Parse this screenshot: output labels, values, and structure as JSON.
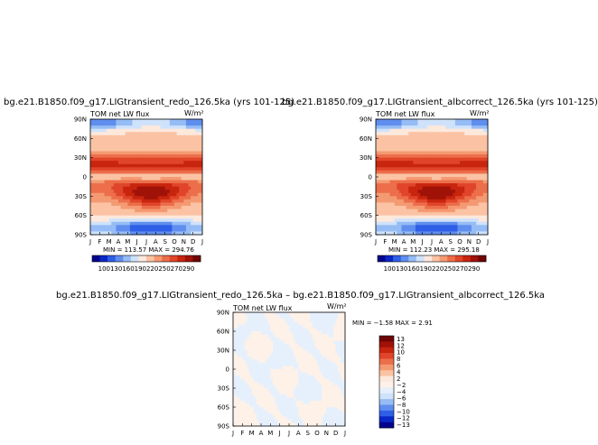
{
  "chart_data": [
    {
      "type": "heatmap",
      "title": "bg.e21.B1850.f09_g17.LIGtransient_redo_126.5ka (yrs 101-125)",
      "left_label": "TOM net LW flux",
      "units": "W/m²",
      "xlabels": [
        "J",
        "F",
        "M",
        "A",
        "M",
        "J",
        "J",
        "A",
        "S",
        "O",
        "N",
        "D",
        "J"
      ],
      "ylabels": [
        "90N",
        "60N",
        "30N",
        "0",
        "30S",
        "60S",
        "90S"
      ],
      "stats": "MIN = 113.57   MAX = 294.76",
      "colorbar_labels": [
        "100",
        "130",
        "160",
        "190",
        "220",
        "250",
        "270",
        "290"
      ]
    },
    {
      "type": "heatmap",
      "title": "bg.e21.B1850.f09_g17.LIGtransient_albcorrect_126.5ka (yrs 101-125)",
      "left_label": "TOM net LW flux",
      "units": "W/m²",
      "xlabels": [
        "J",
        "F",
        "M",
        "A",
        "M",
        "J",
        "J",
        "A",
        "S",
        "O",
        "N",
        "D",
        "J"
      ],
      "ylabels": [
        "90N",
        "60N",
        "30N",
        "0",
        "30S",
        "60S",
        "90S"
      ],
      "stats": "MIN = 112.23   MAX = 295.18",
      "colorbar_labels": [
        "100",
        "130",
        "160",
        "190",
        "220",
        "250",
        "270",
        "290"
      ]
    },
    {
      "type": "heatmap",
      "title": "bg.e21.B1850.f09_g17.LIGtransient_redo_126.5ka – bg.e21.B1850.f09_g17.LIGtransient_albcorrect_126.5ka",
      "left_label": "TOM net LW flux",
      "units": "W/m²",
      "xlabels": [
        "J",
        "F",
        "M",
        "A",
        "M",
        "J",
        "J",
        "A",
        "S",
        "O",
        "N",
        "D",
        "J"
      ],
      "ylabels": [
        "90N",
        "60N",
        "30N",
        "0",
        "30S",
        "60S",
        "90S"
      ],
      "stats": "MIN =  −1.58  MAX =    2.91",
      "colorbar_labels": [
        "13",
        "12",
        "10",
        "8",
        "6",
        "4",
        "2",
        "−2",
        "−4",
        "−6",
        "−8",
        "−10",
        "−12",
        "−13"
      ]
    }
  ],
  "colors": {
    "full_scale": [
      "#05058c",
      "#0a28c8",
      "#2f5fe6",
      "#5f8eee",
      "#96bcf5",
      "#cfe2fb",
      "#fde8dc",
      "#fbc3a4",
      "#f49a72",
      "#ec6e4a",
      "#e0452a",
      "#c8250f",
      "#a01208",
      "#6e0505"
    ],
    "diff_scale": [
      "#05058c",
      "#0a28c8",
      "#2f5fe6",
      "#5f8eee",
      "#96bcf5",
      "#cfe2fb",
      "#e6f0fc",
      "#fdf1e8",
      "#fde8dc",
      "#fbc3a4",
      "#f49a72",
      "#ec6e4a",
      "#e0452a",
      "#c8250f",
      "#a01208",
      "#6e0505"
    ]
  }
}
